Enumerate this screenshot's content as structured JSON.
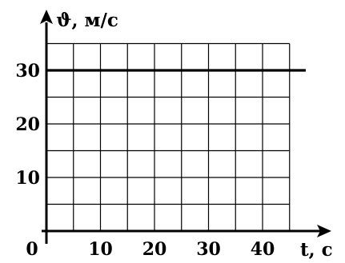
{
  "chart_data": {
    "type": "line",
    "title": "",
    "xlabel": "t, c",
    "ylabel": "ϑ, м/с",
    "origin_label": "0",
    "xlim": [
      0,
      48
    ],
    "ylim": [
      0,
      35
    ],
    "x_grid_step": 5,
    "y_grid_step": 5,
    "grid": true,
    "x_ticks": [
      10,
      20,
      30,
      40
    ],
    "y_ticks": [
      10,
      20,
      30
    ],
    "x_tick_labels": [
      "10",
      "20",
      "30",
      "40"
    ],
    "y_tick_labels": [
      "10",
      "20",
      "30"
    ],
    "series": [
      {
        "x": [
          0,
          48
        ],
        "y": [
          30,
          30
        ]
      }
    ],
    "colors": {
      "grid": "#000000",
      "axis": "#000000",
      "line": "#000000"
    }
  }
}
